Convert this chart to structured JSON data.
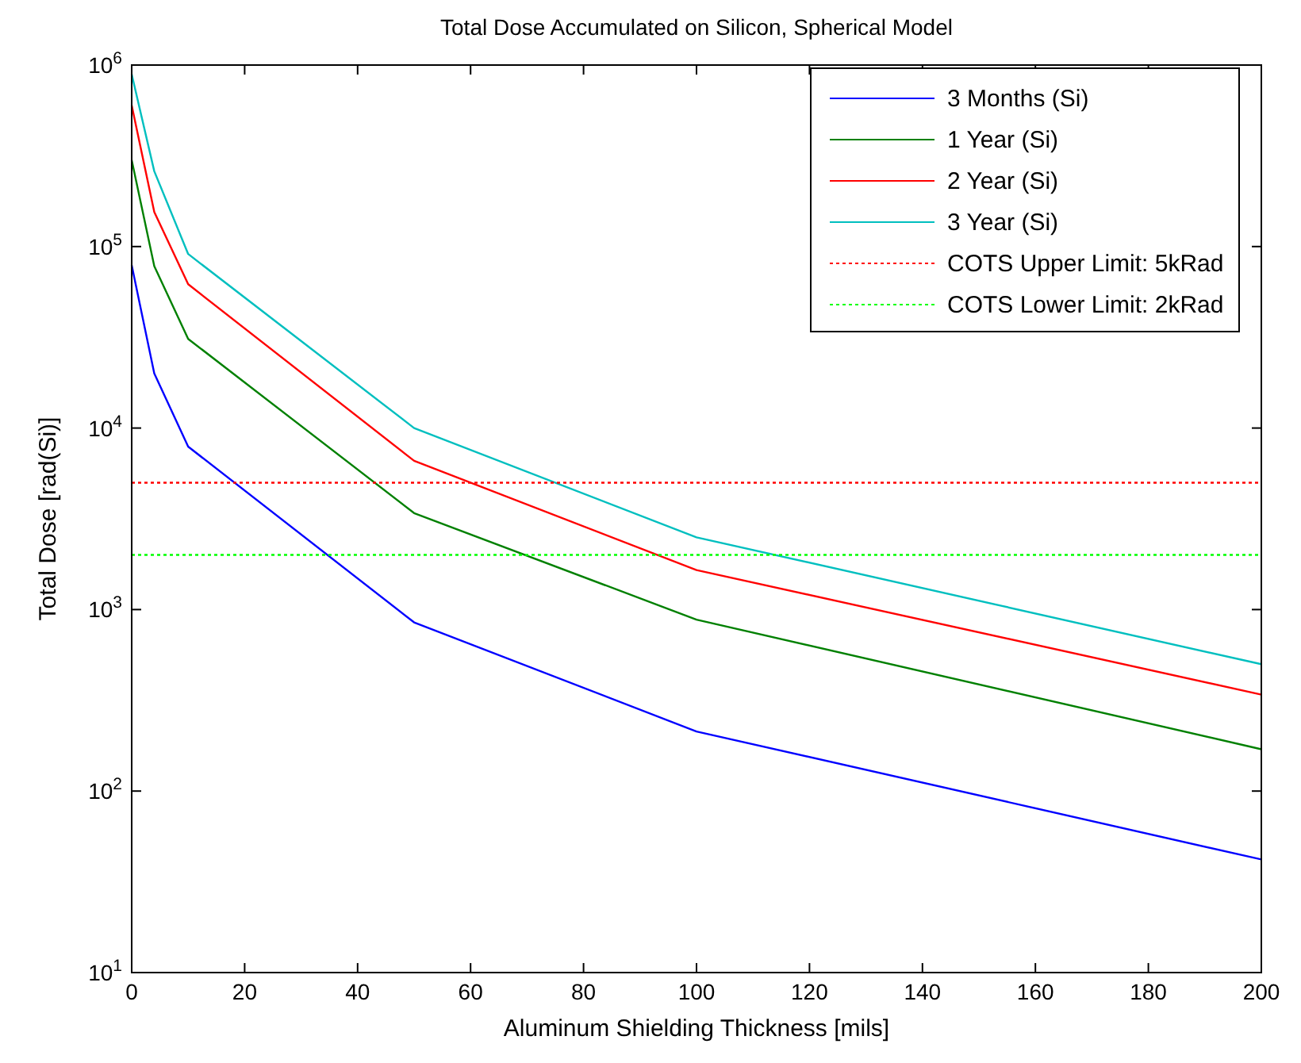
{
  "chart_data": {
    "type": "line",
    "title": "Total Dose Accumulated on Silicon, Spherical Model",
    "xlabel": "Aluminum Shielding Thickness [mils]",
    "ylabel": "Total Dose [rad(Si)]",
    "x": [
      0,
      4,
      10,
      50,
      100,
      200
    ],
    "series": [
      {
        "name": "3 Months (Si)",
        "color": "#0000ff",
        "values": [
          79000,
          20000,
          7900,
          850,
          213,
          42
        ]
      },
      {
        "name": "1 Year (Si)",
        "color": "#008000",
        "values": [
          300000,
          78000,
          31000,
          3400,
          880,
          170
        ]
      },
      {
        "name": "2 Year (Si)",
        "color": "#ff0000",
        "values": [
          600000,
          155000,
          62000,
          6600,
          1650,
          340
        ]
      },
      {
        "name": "3 Year (Si)",
        "color": "#00bfbf",
        "values": [
          890000,
          260000,
          91000,
          10000,
          2500,
          500
        ]
      },
      {
        "name": "COTS Upper Limit: 5kRad",
        "color": "#ff0000",
        "line_style": "dotted",
        "values": [
          5000,
          5000,
          5000,
          5000,
          5000,
          5000
        ]
      },
      {
        "name": "COTS Lower Limit: 2kRad",
        "color": "#00ff00",
        "line_style": "dotted",
        "values": [
          2000,
          2000,
          2000,
          2000,
          2000,
          2000
        ]
      }
    ],
    "log": "y",
    "xlim": [
      0,
      200
    ],
    "xticks": [
      0,
      20,
      40,
      60,
      80,
      100,
      120,
      140,
      160,
      180,
      200
    ],
    "ylim": [
      10,
      1000000
    ],
    "yticks": [
      {
        "value": 10,
        "label": "10$^{1}$"
      },
      {
        "value": 100,
        "label": "10$^{2}$"
      },
      {
        "value": 1000,
        "label": "10$^{3}$"
      },
      {
        "value": 10000,
        "label": "10$^{4}$"
      },
      {
        "value": 100000,
        "label": "10$^{5}$"
      },
      {
        "value": 1000000,
        "label": "10$^{6}$"
      }
    ],
    "grid": false,
    "legend": "top right",
    "line_style": "solid",
    "marker": "none"
  }
}
